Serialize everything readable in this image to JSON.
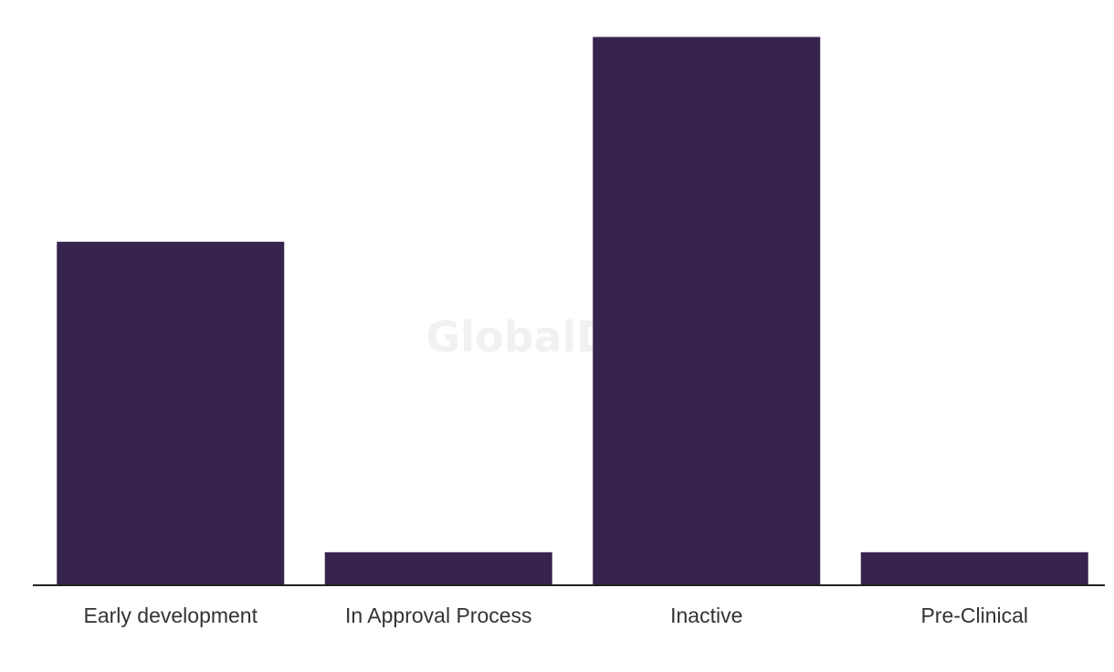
{
  "watermark": "GlobalData",
  "chart_data": {
    "type": "bar",
    "categories": [
      "Early development",
      "In Approval Process",
      "Inactive",
      "Pre-Clinical"
    ],
    "values": [
      10.4,
      1,
      16.6,
      1
    ],
    "title": "",
    "xlabel": "",
    "ylabel": "",
    "ylim": [
      0,
      17
    ],
    "grid": false,
    "legend": "none",
    "bar_color": "#36244f",
    "axis_color": "#222222"
  }
}
